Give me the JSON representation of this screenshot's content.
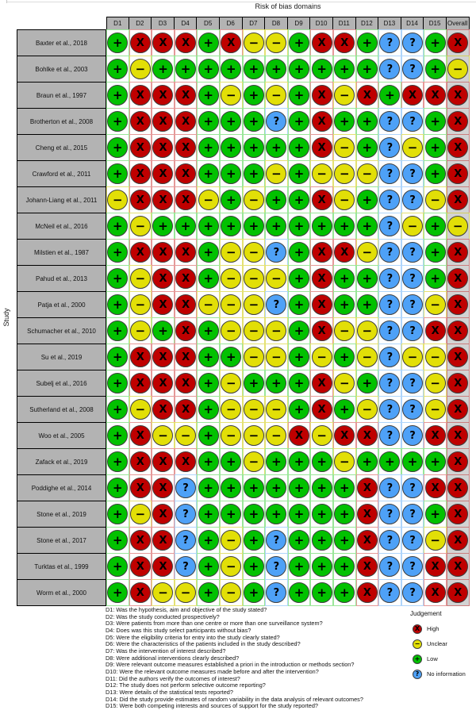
{
  "chart_data": {
    "type": "heatmap",
    "title": "Risk of bias domains",
    "ylabel": "Study",
    "columns": [
      "D1",
      "D2",
      "D3",
      "D4",
      "D5",
      "D6",
      "D7",
      "D8",
      "D9",
      "D10",
      "D11",
      "D12",
      "D13",
      "D14",
      "D15",
      "Overall"
    ],
    "judgement_key": {
      "H": {
        "label": "High",
        "symbol": "X",
        "color": "#bf0000",
        "tint": "rgba(191,0,0,0.40)"
      },
      "U": {
        "label": "Unclear",
        "symbol": "−",
        "color": "#e2df07",
        "tint": "rgba(205,200,0,0.55)"
      },
      "L": {
        "label": "Low",
        "symbol": "+",
        "color": "#02c100",
        "tint": "rgba(2,193,0,0.40)"
      },
      "N": {
        "label": "No information",
        "symbol": "?",
        "color": "#4ea1f7",
        "tint": "rgba(78,161,247,0.45)"
      }
    },
    "rows": [
      {
        "study": "Baxter et al., 2018",
        "judgements": [
          "L",
          "H",
          "H",
          "H",
          "L",
          "H",
          "U",
          "U",
          "L",
          "H",
          "H",
          "L",
          "N",
          "N",
          "L",
          "H"
        ]
      },
      {
        "study": "Bohlke et al., 2003",
        "judgements": [
          "L",
          "U",
          "L",
          "L",
          "L",
          "L",
          "L",
          "L",
          "L",
          "L",
          "L",
          "L",
          "N",
          "N",
          "L",
          "U"
        ]
      },
      {
        "study": "Braun et al., 1997",
        "judgements": [
          "L",
          "H",
          "H",
          "H",
          "L",
          "U",
          "L",
          "U",
          "L",
          "H",
          "U",
          "H",
          "L",
          "H",
          "H",
          "H"
        ]
      },
      {
        "study": "Brotherton et al., 2008",
        "judgements": [
          "L",
          "H",
          "H",
          "H",
          "L",
          "L",
          "L",
          "N",
          "L",
          "H",
          "L",
          "L",
          "N",
          "N",
          "L",
          "H"
        ]
      },
      {
        "study": "Cheng et al., 2015",
        "judgements": [
          "L",
          "H",
          "H",
          "H",
          "L",
          "L",
          "L",
          "L",
          "L",
          "H",
          "U",
          "L",
          "N",
          "U",
          "L",
          "H"
        ]
      },
      {
        "study": "Crawford et al., 2011",
        "judgements": [
          "L",
          "H",
          "H",
          "H",
          "L",
          "L",
          "L",
          "U",
          "L",
          "U",
          "U",
          "U",
          "N",
          "N",
          "L",
          "H"
        ]
      },
      {
        "study": "Johann-Liang et al., 2011",
        "judgements": [
          "U",
          "H",
          "H",
          "H",
          "U",
          "L",
          "U",
          "L",
          "L",
          "H",
          "U",
          "L",
          "N",
          "N",
          "U",
          "H"
        ]
      },
      {
        "study": "McNeil et al., 2016",
        "judgements": [
          "L",
          "U",
          "L",
          "L",
          "L",
          "L",
          "L",
          "L",
          "L",
          "L",
          "L",
          "L",
          "N",
          "U",
          "L",
          "U"
        ]
      },
      {
        "study": "Milstien et al., 1987",
        "judgements": [
          "L",
          "H",
          "H",
          "H",
          "L",
          "U",
          "U",
          "N",
          "L",
          "H",
          "H",
          "U",
          "N",
          "N",
          "L",
          "H"
        ]
      },
      {
        "study": "Pahud et al., 2013",
        "judgements": [
          "L",
          "U",
          "H",
          "H",
          "L",
          "U",
          "U",
          "U",
          "L",
          "H",
          "L",
          "L",
          "N",
          "N",
          "L",
          "H"
        ]
      },
      {
        "study": "Patja et al., 2000",
        "judgements": [
          "L",
          "U",
          "H",
          "H",
          "U",
          "U",
          "U",
          "N",
          "L",
          "H",
          "L",
          "L",
          "N",
          "N",
          "U",
          "H"
        ]
      },
      {
        "study": "Schumacher et al., 2010",
        "judgements": [
          "L",
          "U",
          "L",
          "H",
          "L",
          "U",
          "U",
          "U",
          "L",
          "H",
          "U",
          "U",
          "N",
          "N",
          "H",
          "H"
        ]
      },
      {
        "study": "Su et al., 2019",
        "judgements": [
          "L",
          "H",
          "H",
          "H",
          "L",
          "L",
          "U",
          "U",
          "L",
          "U",
          "L",
          "U",
          "N",
          "U",
          "U",
          "H"
        ]
      },
      {
        "study": "Subelj et al., 2016",
        "judgements": [
          "L",
          "H",
          "H",
          "H",
          "L",
          "U",
          "L",
          "L",
          "L",
          "H",
          "U",
          "L",
          "N",
          "N",
          "U",
          "H"
        ]
      },
      {
        "study": "Sutherland et al., 2008",
        "judgements": [
          "L",
          "U",
          "H",
          "H",
          "L",
          "U",
          "U",
          "U",
          "L",
          "H",
          "L",
          "U",
          "N",
          "N",
          "U",
          "H"
        ]
      },
      {
        "study": "Woo et al., 2005",
        "judgements": [
          "L",
          "H",
          "U",
          "U",
          "L",
          "U",
          "U",
          "U",
          "H",
          "U",
          "H",
          "H",
          "N",
          "N",
          "H",
          "H"
        ]
      },
      {
        "study": "Zafack et al., 2019",
        "judgements": [
          "L",
          "H",
          "H",
          "H",
          "L",
          "L",
          "U",
          "L",
          "L",
          "L",
          "U",
          "L",
          "L",
          "L",
          "L",
          "H"
        ]
      },
      {
        "study": "Poddighe et al., 2014",
        "judgements": [
          "L",
          "H",
          "H",
          "N",
          "L",
          "L",
          "L",
          "L",
          "L",
          "L",
          "L",
          "H",
          "N",
          "N",
          "H",
          "H"
        ]
      },
      {
        "study": "Stone et al., 2019",
        "judgements": [
          "L",
          "U",
          "H",
          "N",
          "L",
          "L",
          "L",
          "L",
          "L",
          "L",
          "L",
          "H",
          "N",
          "N",
          "L",
          "H"
        ]
      },
      {
        "study": "Stone et al., 2017",
        "judgements": [
          "L",
          "H",
          "H",
          "N",
          "L",
          "U",
          "L",
          "N",
          "L",
          "L",
          "L",
          "H",
          "N",
          "N",
          "U",
          "H"
        ]
      },
      {
        "study": "Turktas et al., 1999",
        "judgements": [
          "L",
          "H",
          "H",
          "N",
          "L",
          "U",
          "L",
          "N",
          "L",
          "L",
          "L",
          "H",
          "N",
          "N",
          "H",
          "H"
        ]
      },
      {
        "study": "Worm et al., 2000",
        "judgements": [
          "L",
          "H",
          "U",
          "U",
          "L",
          "U",
          "L",
          "N",
          "L",
          "L",
          "L",
          "H",
          "N",
          "N",
          "H",
          "H"
        ]
      }
    ]
  },
  "legend": {
    "title": "Judgement",
    "items": [
      {
        "code": "H",
        "label": "High"
      },
      {
        "code": "U",
        "label": "Unclear"
      },
      {
        "code": "L",
        "label": "Low"
      },
      {
        "code": "N",
        "label": "No information"
      }
    ]
  },
  "footnotes": [
    "D1: Was the hypothesis, aim and objective of the study stated?",
    "D2: Was the study conducted prospectively?",
    "D3: Were patients from more than one centre or more than one surveillance system?",
    "D4: Does was this study select participants without bias?",
    "D5: Were the eligibility criteria for entry into the study clearly stated?",
    "D6: Were the characteristics of the patients included in the study described?",
    "D7: Was the intervention of interest described?",
    "D8: Were additional interventions clearly described?",
    "D9: Were relevant outcome measures established a priori in the introduction or methods section?",
    "D10: Were the relevant outcome measures made before and after the intervention?",
    "D11: Did the authors verify the outcomes of interest?",
    "D12: The study does not perform selective outcome reporting?",
    "D13: Were details of the statistical tests reported?",
    "D14: Did the study provide estimates of random variability in the data analysis of relevant outcomes?",
    "D15: Were both competing interests and sources of support for the study reported?"
  ]
}
